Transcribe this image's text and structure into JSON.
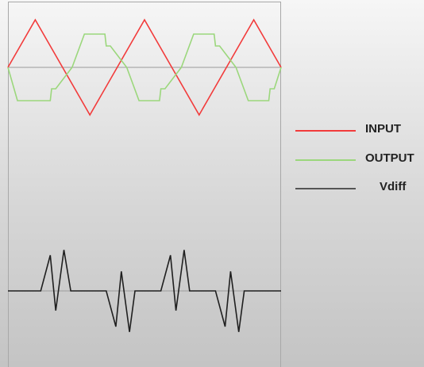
{
  "chart_data": {
    "type": "line",
    "title": "",
    "xlabel": "",
    "ylabel": "",
    "grid": false,
    "legend_position": "right",
    "panels": [
      {
        "id": "top",
        "ylim": [
          -1.25,
          1.25
        ],
        "baseline": 0,
        "series": [
          {
            "name": "INPUT",
            "color": "#f23b3b",
            "x": [
              0,
              1,
              2,
              3,
              4,
              5,
              6,
              7,
              8,
              9,
              10
            ],
            "y": [
              0,
              1,
              0,
              -1,
              0,
              1,
              0,
              -1,
              0,
              1,
              0
            ]
          },
          {
            "name": "OUTPUT",
            "color": "#9bd77c",
            "x": [
              0,
              0.35,
              0.8,
              1.55,
              1.6,
              1.75,
              2.35,
              2.8,
              3.55,
              3.6,
              3.75,
              4.35,
              4.8,
              5.55,
              5.6,
              5.75,
              6.35,
              6.8,
              7.55,
              7.6,
              7.75,
              8.35,
              8.8,
              9.55,
              9.6,
              9.75,
              10
            ],
            "y": [
              0,
              -0.7,
              -0.7,
              -0.7,
              -0.45,
              -0.45,
              0,
              0.7,
              0.7,
              0.45,
              0.45,
              0,
              -0.7,
              -0.7,
              -0.45,
              -0.45,
              0,
              0.7,
              0.7,
              0.45,
              0.45,
              0,
              -0.7,
              -0.7,
              -0.45,
              -0.45,
              0
            ]
          }
        ]
      },
      {
        "id": "bottom",
        "ylim": [
          -1.25,
          1.25
        ],
        "baseline": 0,
        "series": [
          {
            "name": "Vdiff",
            "color": "#1f1f1f",
            "x": [
              0,
              1.2,
              1.55,
              1.75,
              2.05,
              2.3,
              3.6,
              3.95,
              4.15,
              4.45,
              4.65,
              5.6,
              5.95,
              6.15,
              6.45,
              6.65,
              7.6,
              7.95,
              8.15,
              8.45,
              8.65,
              9.6,
              9.95,
              10
            ],
            "y": [
              0,
              0,
              1,
              -0.55,
              1.15,
              0,
              0,
              -1,
              0.55,
              -1.15,
              0,
              0,
              1,
              -0.55,
              1.15,
              0,
              0,
              -1,
              0.55,
              -1.15,
              0,
              0,
              0,
              0
            ]
          }
        ]
      }
    ]
  },
  "legend": [
    {
      "label": "INPUT",
      "color": "#f23b3b"
    },
    {
      "label": "OUTPUT",
      "color": "#9bd77c"
    },
    {
      "label": "Vdiff",
      "color": "#555555"
    }
  ]
}
